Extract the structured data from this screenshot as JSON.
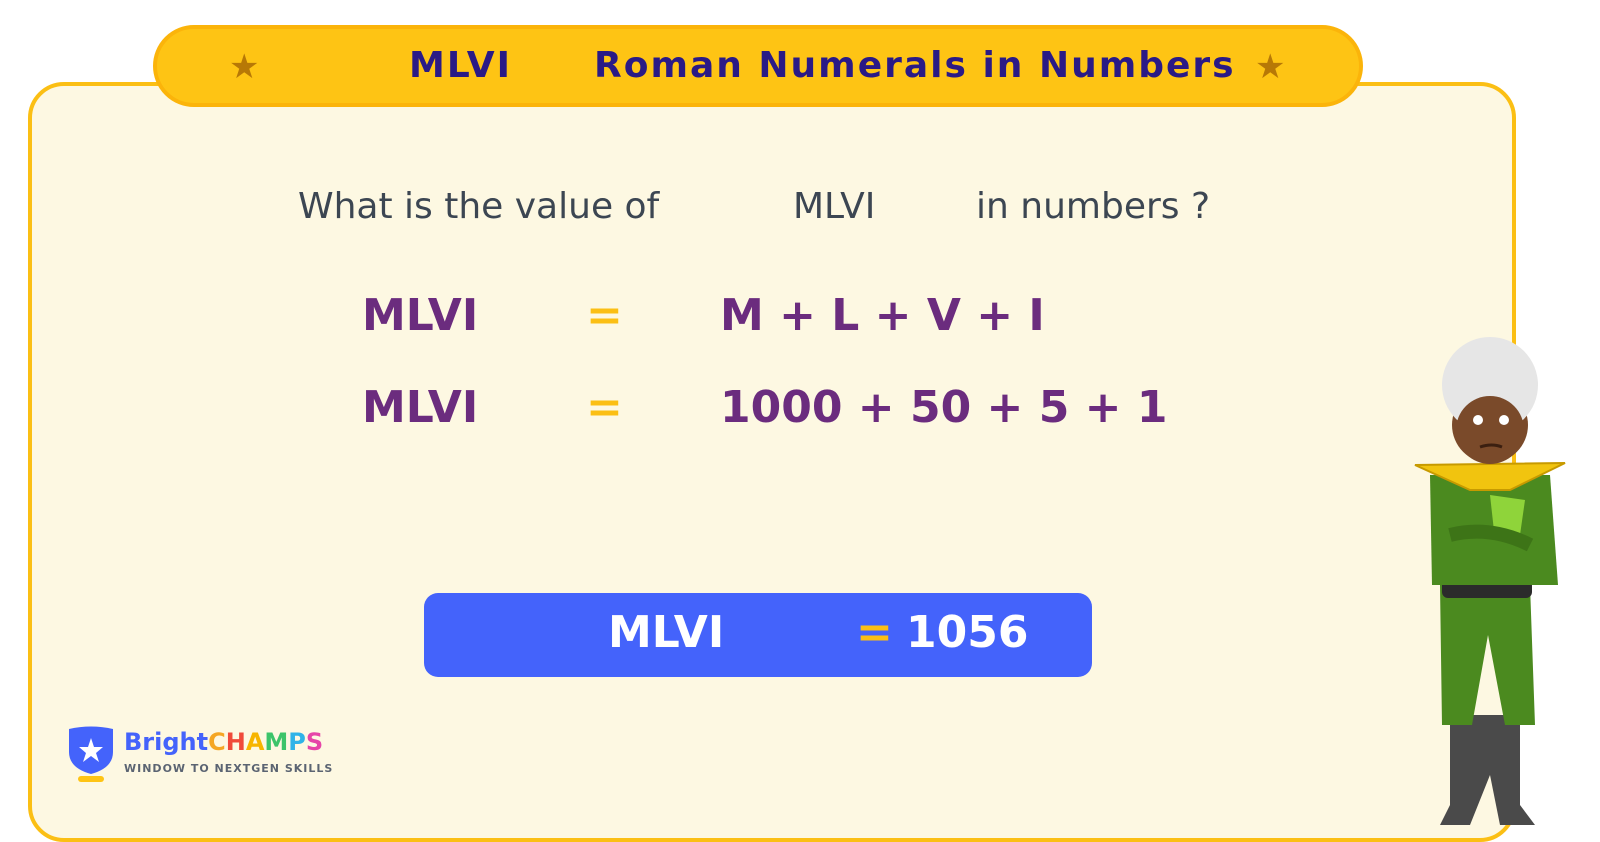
{
  "banner": {
    "numeral": "MLVI",
    "title": "Roman Numerals in Numbers",
    "star_icon": "star-icon"
  },
  "question": {
    "prefix": "What is the value of",
    "numeral": "MLVI",
    "suffix": "in numbers ?"
  },
  "equations": [
    {
      "lhs": "MLVI",
      "sign": "=",
      "rhs": "M + L + V + I"
    },
    {
      "lhs": "MLVI",
      "sign": "=",
      "rhs": "1000 + 50 + 5 + 1"
    }
  ],
  "result": {
    "lhs": "MLVI",
    "sign": "=",
    "value": "1056"
  },
  "logo": {
    "bright": "Bright",
    "champs": [
      "C",
      "H",
      "A",
      "M",
      "P",
      "S"
    ],
    "tagline": "WINDOW TO NEXTGEN SKILLS"
  },
  "colors": {
    "accent": "#fec414",
    "result_bg": "#4463fb",
    "equation": "#6b2c7e",
    "title": "#2a1a86"
  }
}
